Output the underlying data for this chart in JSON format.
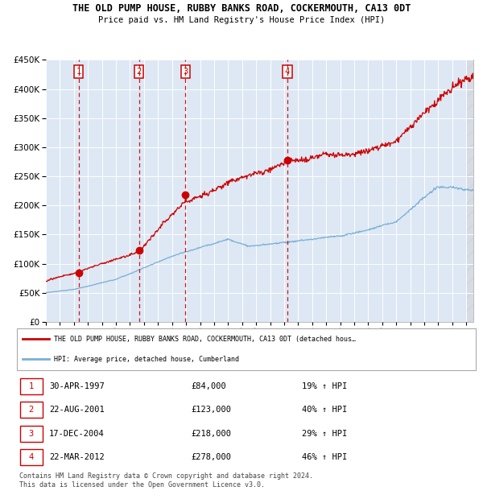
{
  "title1": "THE OLD PUMP HOUSE, RUBBY BANKS ROAD, COCKERMOUTH, CA13 0DT",
  "title2": "Price paid vs. HM Land Registry's House Price Index (HPI)",
  "legend_line1": "THE OLD PUMP HOUSE, RUBBY BANKS ROAD, COCKERMOUTH, CA13 0DT (detached hous…",
  "legend_line2": "HPI: Average price, detached house, Cumberland",
  "footnote": "Contains HM Land Registry data © Crown copyright and database right 2024.\nThis data is licensed under the Open Government Licence v3.0.",
  "sale_dates": [
    "30-APR-1997",
    "22-AUG-2001",
    "17-DEC-2004",
    "22-MAR-2012"
  ],
  "sale_prices": [
    84000,
    123000,
    218000,
    278000
  ],
  "sale_years": [
    1997.33,
    2001.64,
    2004.96,
    2012.22
  ],
  "ylim": [
    0,
    450000
  ],
  "xlim_start": 1995.0,
  "xlim_end": 2025.5,
  "red_color": "#cc0000",
  "blue_color": "#7aaed6",
  "bg_color": "#dde8f4",
  "grid_color": "#c0cfe0",
  "vline_color": "#cc0000",
  "box_color": "#cc0000",
  "table_rows": [
    [
      "1",
      "30-APR-1997",
      "£84,000",
      "19% ↑ HPI"
    ],
    [
      "2",
      "22-AUG-2001",
      "£123,000",
      "40% ↑ HPI"
    ],
    [
      "3",
      "17-DEC-2004",
      "£218,000",
      "29% ↑ HPI"
    ],
    [
      "4",
      "22-MAR-2012",
      "£278,000",
      "46% ↑ HPI"
    ]
  ]
}
